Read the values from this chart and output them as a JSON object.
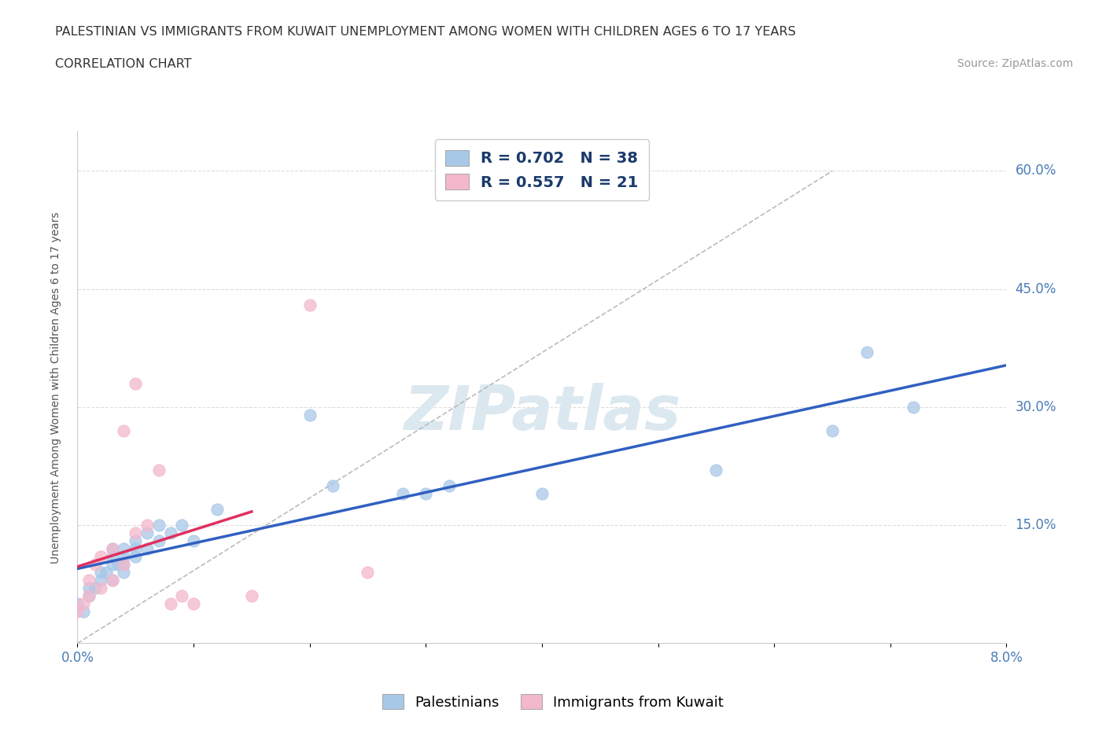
{
  "title_line1": "PALESTINIAN VS IMMIGRANTS FROM KUWAIT UNEMPLOYMENT AMONG WOMEN WITH CHILDREN AGES 6 TO 17 YEARS",
  "title_line2": "CORRELATION CHART",
  "source_text": "Source: ZipAtlas.com",
  "ylabel": "Unemployment Among Women with Children Ages 6 to 17 years",
  "xlim": [
    0.0,
    0.08
  ],
  "ylim": [
    0.0,
    0.65
  ],
  "xticks": [
    0.0,
    0.01,
    0.02,
    0.03,
    0.04,
    0.05,
    0.06,
    0.07,
    0.08
  ],
  "yticks": [
    0.0,
    0.15,
    0.3,
    0.45,
    0.6
  ],
  "background_color": "#ffffff",
  "grid_color": "#dddddd",
  "palestinian_color": "#a8c8e8",
  "kuwait_color": "#f4b8cc",
  "regression_blue_color": "#3060c0",
  "regression_pink_color": "#e03060",
  "regression_gray_color": "#cccccc",
  "watermark_color": "#dce8f0",
  "R_pal": 0.702,
  "N_pal": 38,
  "R_kuw": 0.557,
  "N_kuw": 21,
  "legend_label_pal": "R = 0.702   N = 38",
  "legend_label_kuw": "R = 0.557   N = 21",
  "bottom_legend_pal": "Palestinians",
  "bottom_legend_kuw": "Immigrants from Kuwait",
  "palestinians_x": [
    0.0,
    0.0005,
    0.001,
    0.001,
    0.0015,
    0.002,
    0.002,
    0.0025,
    0.003,
    0.003,
    0.003,
    0.003,
    0.0035,
    0.004,
    0.004,
    0.004,
    0.004,
    0.005,
    0.005,
    0.005,
    0.006,
    0.006,
    0.007,
    0.007,
    0.008,
    0.009,
    0.01,
    0.012,
    0.02,
    0.022,
    0.028,
    0.03,
    0.032,
    0.04,
    0.055,
    0.065,
    0.068,
    0.072
  ],
  "palestinians_y": [
    0.05,
    0.04,
    0.06,
    0.07,
    0.07,
    0.08,
    0.09,
    0.09,
    0.08,
    0.1,
    0.11,
    0.12,
    0.1,
    0.09,
    0.1,
    0.11,
    0.12,
    0.11,
    0.12,
    0.13,
    0.12,
    0.14,
    0.13,
    0.15,
    0.14,
    0.15,
    0.13,
    0.17,
    0.29,
    0.2,
    0.19,
    0.19,
    0.2,
    0.19,
    0.22,
    0.27,
    0.37,
    0.3
  ],
  "kuwait_x": [
    0.0,
    0.0005,
    0.001,
    0.001,
    0.0015,
    0.002,
    0.002,
    0.003,
    0.003,
    0.004,
    0.004,
    0.005,
    0.005,
    0.006,
    0.007,
    0.008,
    0.009,
    0.01,
    0.015,
    0.02,
    0.025
  ],
  "kuwait_y": [
    0.04,
    0.05,
    0.06,
    0.08,
    0.1,
    0.07,
    0.11,
    0.08,
    0.12,
    0.1,
    0.27,
    0.14,
    0.33,
    0.15,
    0.22,
    0.05,
    0.06,
    0.05,
    0.06,
    0.43,
    0.09
  ]
}
